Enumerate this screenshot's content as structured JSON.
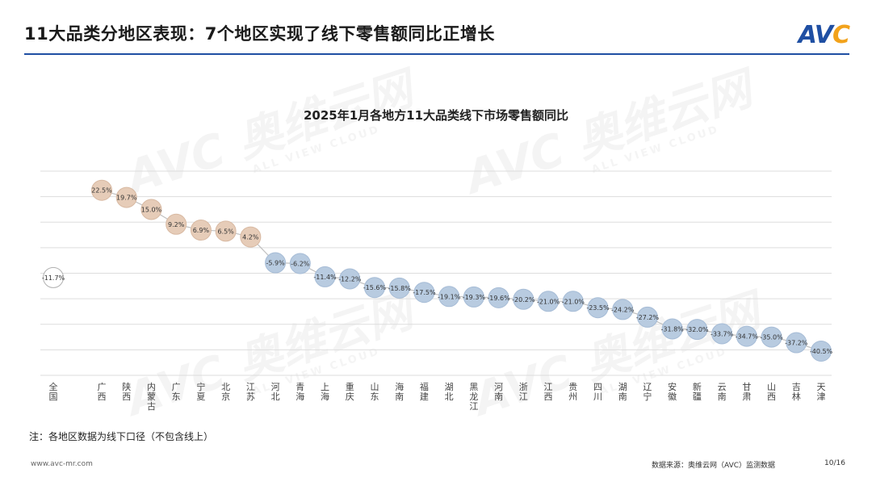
{
  "header": {
    "title": "11大品类分地区表现：7个地区实现了线下零售额同比正增长",
    "logo_text": "AVC"
  },
  "watermark": {
    "main": "AVC 奥维云网",
    "sub": "ALL VIEW CLOUD"
  },
  "chart_data": {
    "type": "line",
    "title": "2025年1月各地方11大品类线下市场零售额同比",
    "categories": [
      "全国",
      "广西",
      "陕西",
      "内蒙古",
      "广东",
      "宁夏",
      "北京",
      "江苏",
      "河北",
      "青海",
      "上海",
      "重庆",
      "山东",
      "海南",
      "福建",
      "湖北",
      "黑龙江",
      "河南",
      "浙江",
      "江西",
      "贵州",
      "四川",
      "湖南",
      "辽宁",
      "安徽",
      "新疆",
      "云南",
      "甘肃",
      "山西",
      "吉林",
      "天津"
    ],
    "values": [
      -11.7,
      22.5,
      19.7,
      15.0,
      9.2,
      6.9,
      6.5,
      4.2,
      -5.9,
      -6.2,
      -11.4,
      -12.2,
      -15.6,
      -15.8,
      -17.5,
      -19.1,
      -19.3,
      -19.6,
      -20.2,
      -21.0,
      -21.0,
      -23.5,
      -24.2,
      -27.2,
      -31.8,
      -32.0,
      -33.7,
      -34.7,
      -35.0,
      -37.2,
      -40.5
    ],
    "labels": [
      "-11.7%",
      "22.5%",
      "19.7%",
      "15.0%",
      "9.2%",
      "6.9%",
      "6.5%",
      "4.2%",
      "-5.9%",
      "-6.2%",
      "-11.4%",
      "-12.2%",
      "-15.6%",
      "-15.8%",
      "-17.5%",
      "-19.1%",
      "-19.3%",
      "-19.6%",
      "-20.2%",
      "-21.0%",
      "-21.0%",
      "-23.5%",
      "-24.2%",
      "-27.2%",
      "-31.8%",
      "-32.0%",
      "-33.7%",
      "-34.7%",
      "-35.0%",
      "-37.2%",
      "-40.5%"
    ],
    "ylim": [
      -50,
      30
    ],
    "grid": true,
    "colors": {
      "positive": "#e6ccb8",
      "negative": "#b8cbe0",
      "national": "#ffffff",
      "line": "#c0c0c0",
      "grid": "#dddddd"
    }
  },
  "footer": {
    "note": "注：各地区数据为线下口径（不包含线上）",
    "site": "www.avc-mr.com",
    "source": "数据来源：奥维云网（AVC）监测数据",
    "page": "10/16"
  }
}
